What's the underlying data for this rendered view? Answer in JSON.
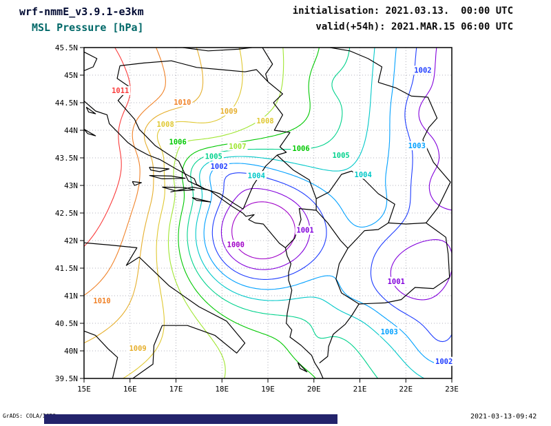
{
  "header": {
    "model_line": "wrf-nmmE_v3.9.1-e3km",
    "variable_line": "MSL Pressure [hPa]",
    "init_line": "initialisation: 2021.03.13.  00:00 UTC",
    "valid_line": "valid(+54h): 2021.MAR.15 06:00 UTC",
    "model_color": "#000a32",
    "variable_color": "#006868",
    "time_color": "#0a0a0a"
  },
  "footer": {
    "credit": "GrADS: COLA/IGES",
    "timestamp": "2021-03-13-09:42",
    "bar_color": "#23236b"
  },
  "chart_data": {
    "type": "contour-map",
    "title": "MSL Pressure [hPa]",
    "units": "hPa",
    "region": "Adriatic / Balkans",
    "x_axis": {
      "min": 15,
      "max": 23,
      "ticks": [
        {
          "value": 15,
          "label": "15E"
        },
        {
          "value": 16,
          "label": "16E"
        },
        {
          "value": 17,
          "label": "17E"
        },
        {
          "value": 18,
          "label": "18E"
        },
        {
          "value": 19,
          "label": "19E"
        },
        {
          "value": 20,
          "label": "20E"
        },
        {
          "value": 21,
          "label": "21E"
        },
        {
          "value": 22,
          "label": "22E"
        },
        {
          "value": 23,
          "label": "23E"
        }
      ]
    },
    "y_axis": {
      "min": 39.5,
      "max": 45.5,
      "ticks": [
        {
          "value": 45.5,
          "label": "45.5N"
        },
        {
          "value": 45,
          "label": "45N"
        },
        {
          "value": 44.5,
          "label": "44.5N"
        },
        {
          "value": 44,
          "label": "44N"
        },
        {
          "value": 43.5,
          "label": "43.5N"
        },
        {
          "value": 43,
          "label": "43N"
        },
        {
          "value": 42.5,
          "label": "42.5N"
        },
        {
          "value": 42,
          "label": "42N"
        },
        {
          "value": 41.5,
          "label": "41.5N"
        },
        {
          "value": 41,
          "label": "41N"
        },
        {
          "value": 40.5,
          "label": "40.5N"
        },
        {
          "value": 40,
          "label": "40N"
        },
        {
          "value": 39.5,
          "label": "39.5N"
        }
      ]
    },
    "grid": {
      "lon_step": 1,
      "lat_step": 0.5,
      "style": "dotted"
    },
    "contour_levels": [
      {
        "value": 1000,
        "color": "#a000c8"
      },
      {
        "value": 1001,
        "color": "#8200dc"
      },
      {
        "value": 1002,
        "color": "#1e3cff"
      },
      {
        "value": 1003,
        "color": "#00a0ff"
      },
      {
        "value": 1004,
        "color": "#00c8c8"
      },
      {
        "value": 1005,
        "color": "#00d28c"
      },
      {
        "value": 1006,
        "color": "#00c800"
      },
      {
        "value": 1007,
        "color": "#a0e632"
      },
      {
        "value": 1008,
        "color": "#e0c832"
      },
      {
        "value": 1009,
        "color": "#e6af2d"
      },
      {
        "value": 1010,
        "color": "#f08228"
      },
      {
        "value": 1011,
        "color": "#fa3c3c"
      }
    ],
    "contour_labels": [
      {
        "value": 1011,
        "lon": 15.79,
        "lat": 44.72
      },
      {
        "value": 1010,
        "lon": 17.14,
        "lat": 44.51
      },
      {
        "value": 1009,
        "lon": 18.15,
        "lat": 44.35
      },
      {
        "value": 1008,
        "lon": 18.94,
        "lat": 44.17
      },
      {
        "value": 1008,
        "lon": 16.77,
        "lat": 44.11
      },
      {
        "value": 1006,
        "lon": 17.04,
        "lat": 43.79
      },
      {
        "value": 1007,
        "lon": 18.34,
        "lat": 43.71
      },
      {
        "value": 1005,
        "lon": 17.82,
        "lat": 43.53
      },
      {
        "value": 1002,
        "lon": 17.94,
        "lat": 43.35
      },
      {
        "value": 1004,
        "lon": 18.75,
        "lat": 43.18
      },
      {
        "value": 1006,
        "lon": 19.72,
        "lat": 43.67
      },
      {
        "value": 1005,
        "lon": 20.59,
        "lat": 43.55
      },
      {
        "value": 1004,
        "lon": 21.07,
        "lat": 43.2
      },
      {
        "value": 1003,
        "lon": 22.24,
        "lat": 43.72
      },
      {
        "value": 1002,
        "lon": 22.37,
        "lat": 45.09
      },
      {
        "value": 1001,
        "lon": 19.81,
        "lat": 42.19
      },
      {
        "value": 1000,
        "lon": 18.3,
        "lat": 41.93
      },
      {
        "value": 1001,
        "lon": 21.79,
        "lat": 41.26
      },
      {
        "value": 1003,
        "lon": 21.64,
        "lat": 40.35
      },
      {
        "value": 1002,
        "lon": 22.83,
        "lat": 39.81
      },
      {
        "value": 1010,
        "lon": 15.39,
        "lat": 40.91
      },
      {
        "value": 1009,
        "lon": 16.17,
        "lat": 40.05
      }
    ],
    "pressure_field": {
      "base": 1006.3,
      "gaussians": [
        {
          "lon": 13.2,
          "lat": 44.0,
          "slon": 4.7,
          "slat": 4.3,
          "amp": 7.0
        },
        {
          "lon": 18.7,
          "lat": 42.2,
          "slon": 1.65,
          "slat": 1.25,
          "amp": -8.8
        },
        {
          "lon": 25.0,
          "lat": 45.9,
          "slon": 3.2,
          "slat": 3.2,
          "amp": -8.0
        },
        {
          "lon": 22.9,
          "lat": 41.8,
          "slon": 2.4,
          "slat": 3.0,
          "amp": -3.6
        },
        {
          "lon": 22.0,
          "lat": 41.3,
          "slon": 1.1,
          "slat": 0.8,
          "amp": -2.4
        },
        {
          "lon": 22.8,
          "lat": 40.1,
          "slon": 0.7,
          "slat": 0.6,
          "amp": -1.3
        },
        {
          "lon": 16.75,
          "lat": 43.95,
          "slon": 0.8,
          "slat": 0.45,
          "amp": -2.2
        },
        {
          "lon": 17.8,
          "lat": 43.3,
          "slon": 1.0,
          "slat": 0.42,
          "amp": -2.7
        },
        {
          "lon": 20.7,
          "lat": 41.0,
          "slon": 0.5,
          "slat": 0.4,
          "amp": -0.7
        },
        {
          "lon": 22.4,
          "lat": 44.3,
          "slon": 0.5,
          "slat": 0.4,
          "amp": -0.8
        },
        {
          "lon": 20.3,
          "lat": 44.85,
          "slon": 0.5,
          "slat": 0.4,
          "amp": -0.6
        },
        {
          "lon": 20.0,
          "lat": 40.15,
          "slon": 0.5,
          "slat": 0.4,
          "amp": -0.6
        },
        {
          "lon": 21.2,
          "lat": 42.6,
          "slon": 0.45,
          "slat": 0.35,
          "amp": 0.6
        },
        {
          "lon": 22.7,
          "lat": 42.95,
          "slon": 0.4,
          "slat": 0.35,
          "amp": -0.6
        }
      ]
    },
    "borders": [
      [
        [
          15.0,
          44.53
        ],
        [
          15.25,
          44.35
        ],
        [
          15.5,
          44.28
        ],
        [
          15.55,
          44.12
        ],
        [
          15.95,
          43.78
        ],
        [
          16.15,
          43.66
        ],
        [
          16.4,
          43.55
        ],
        [
          16.65,
          43.47
        ],
        [
          17.0,
          43.3
        ],
        [
          17.4,
          43.12
        ],
        [
          17.45,
          43.02
        ],
        [
          17.62,
          42.94
        ],
        [
          17.75,
          42.9
        ],
        [
          18.05,
          42.72
        ],
        [
          18.22,
          42.62
        ],
        [
          18.45,
          42.5
        ],
        [
          18.52,
          42.44
        ],
        [
          18.7,
          42.47
        ],
        [
          18.58,
          42.38
        ],
        [
          18.72,
          42.32
        ],
        [
          18.9,
          42.3
        ],
        [
          19.05,
          42.15
        ],
        [
          19.15,
          42.05
        ],
        [
          19.25,
          41.95
        ],
        [
          19.38,
          41.87
        ],
        [
          19.42,
          41.72
        ],
        [
          19.5,
          41.58
        ],
        [
          19.45,
          41.42
        ],
        [
          19.45,
          41.28
        ],
        [
          19.52,
          41.1
        ],
        [
          19.47,
          40.9
        ],
        [
          19.42,
          40.68
        ],
        [
          19.4,
          40.5
        ],
        [
          19.52,
          40.38
        ],
        [
          19.48,
          40.25
        ],
        [
          19.72,
          40.1
        ],
        [
          19.95,
          39.92
        ],
        [
          20.02,
          39.78
        ],
        [
          20.12,
          39.65
        ],
        [
          20.2,
          39.5
        ]
      ],
      [
        [
          15.05,
          44.42
        ],
        [
          15.25,
          44.3
        ],
        [
          15.1,
          44.33
        ],
        [
          15.05,
          44.42
        ]
      ],
      [
        [
          15.0,
          44.02
        ],
        [
          15.25,
          43.9
        ],
        [
          15.08,
          43.94
        ],
        [
          15.0,
          44.02
        ]
      ],
      [
        [
          16.42,
          43.33
        ],
        [
          16.85,
          43.3
        ],
        [
          16.65,
          43.25
        ],
        [
          16.45,
          43.28
        ],
        [
          16.42,
          43.33
        ]
      ],
      [
        [
          16.42,
          43.18
        ],
        [
          16.9,
          43.17
        ],
        [
          17.2,
          43.13
        ],
        [
          16.7,
          43.12
        ],
        [
          16.42,
          43.18
        ]
      ],
      [
        [
          16.05,
          43.07
        ],
        [
          16.25,
          43.05
        ],
        [
          16.1,
          43.0
        ],
        [
          16.05,
          43.07
        ]
      ],
      [
        [
          16.7,
          42.97
        ],
        [
          17.2,
          42.96
        ],
        [
          17.4,
          42.92
        ],
        [
          17.0,
          42.9
        ],
        [
          16.7,
          42.97
        ]
      ],
      [
        [
          16.88,
          42.88
        ],
        [
          17.35,
          42.97
        ],
        [
          17.68,
          42.92
        ]
      ],
      [
        [
          17.35,
          42.78
        ],
        [
          17.75,
          42.7
        ],
        [
          17.45,
          42.73
        ],
        [
          17.35,
          42.78
        ]
      ],
      [
        [
          15.0,
          45.42
        ],
        [
          15.28,
          45.3
        ],
        [
          15.2,
          45.15
        ],
        [
          15.0,
          45.08
        ]
      ],
      [
        [
          17.15,
          45.5
        ],
        [
          17.7,
          45.44
        ],
        [
          18.35,
          45.47
        ],
        [
          18.65,
          45.5
        ]
      ],
      [
        [
          15.78,
          45.17
        ],
        [
          16.3,
          45.22
        ],
        [
          16.9,
          45.26
        ],
        [
          17.45,
          45.14
        ],
        [
          17.98,
          45.1
        ],
        [
          18.5,
          45.06
        ],
        [
          18.75,
          45.1
        ],
        [
          19.0,
          44.88
        ]
      ],
      [
        [
          15.78,
          45.17
        ],
        [
          15.72,
          44.94
        ],
        [
          16.0,
          44.78
        ],
        [
          15.74,
          44.54
        ],
        [
          16.1,
          44.2
        ],
        [
          16.2,
          44.02
        ],
        [
          16.55,
          43.72
        ],
        [
          17.06,
          43.44
        ],
        [
          17.27,
          43.08
        ],
        [
          17.62,
          42.94
        ]
      ],
      [
        [
          17.62,
          42.94
        ],
        [
          17.95,
          42.85
        ],
        [
          18.25,
          42.68
        ],
        [
          18.46,
          42.57
        ]
      ],
      [
        [
          18.46,
          42.57
        ],
        [
          18.55,
          42.75
        ],
        [
          18.68,
          43.0
        ],
        [
          18.95,
          43.35
        ],
        [
          19.2,
          43.55
        ]
      ],
      [
        [
          19.0,
          44.88
        ],
        [
          19.32,
          44.66
        ],
        [
          19.12,
          44.5
        ],
        [
          19.32,
          44.28
        ],
        [
          19.14,
          44.0
        ],
        [
          19.48,
          43.96
        ],
        [
          19.26,
          43.7
        ],
        [
          19.4,
          43.6
        ],
        [
          19.2,
          43.55
        ]
      ],
      [
        [
          18.88,
          45.5
        ],
        [
          19.1,
          45.2
        ],
        [
          18.95,
          45.02
        ],
        [
          19.0,
          44.88
        ]
      ],
      [
        [
          20.35,
          45.5
        ],
        [
          20.78,
          45.44
        ],
        [
          21.18,
          45.3
        ],
        [
          21.48,
          45.15
        ],
        [
          21.4,
          44.87
        ]
      ],
      [
        [
          21.4,
          44.87
        ],
        [
          21.78,
          44.77
        ],
        [
          22.12,
          44.62
        ],
        [
          22.48,
          44.6
        ],
        [
          22.68,
          44.22
        ],
        [
          22.5,
          44.05
        ],
        [
          22.37,
          43.83
        ]
      ],
      [
        [
          22.37,
          43.83
        ],
        [
          22.6,
          43.42
        ],
        [
          22.97,
          43.06
        ],
        [
          22.7,
          42.6
        ],
        [
          22.44,
          42.32
        ]
      ],
      [
        [
          22.44,
          42.32
        ],
        [
          22.87,
          42.06
        ],
        [
          22.92,
          41.76
        ],
        [
          22.95,
          41.33
        ]
      ],
      [
        [
          22.95,
          41.33
        ],
        [
          22.6,
          41.13
        ],
        [
          22.2,
          41.15
        ],
        [
          21.9,
          40.93
        ],
        [
          21.55,
          40.87
        ],
        [
          21.25,
          40.86
        ],
        [
          20.98,
          40.85
        ],
        [
          20.83,
          40.65
        ],
        [
          20.68,
          40.48
        ],
        [
          20.42,
          40.3
        ],
        [
          20.32,
          40.08
        ],
        [
          20.3,
          39.9
        ],
        [
          20.12,
          39.78
        ]
      ],
      [
        [
          20.05,
          42.76
        ],
        [
          20.33,
          42.88
        ],
        [
          20.6,
          43.2
        ],
        [
          20.82,
          43.26
        ],
        [
          21.1,
          43.1
        ],
        [
          21.4,
          42.85
        ],
        [
          21.76,
          42.66
        ],
        [
          21.62,
          42.32
        ],
        [
          21.4,
          42.2
        ],
        [
          21.1,
          42.18
        ],
        [
          20.74,
          41.86
        ],
        [
          20.58,
          42.0
        ],
        [
          20.3,
          42.32
        ],
        [
          20.05,
          42.55
        ],
        [
          20.05,
          42.76
        ]
      ],
      [
        [
          19.2,
          43.55
        ],
        [
          19.55,
          43.28
        ],
        [
          19.9,
          43.1
        ],
        [
          20.05,
          42.76
        ]
      ],
      [
        [
          19.38,
          41.87
        ],
        [
          19.58,
          42.04
        ],
        [
          19.72,
          42.38
        ],
        [
          19.68,
          42.58
        ],
        [
          20.05,
          42.55
        ]
      ],
      [
        [
          21.62,
          42.32
        ],
        [
          22.0,
          42.3
        ],
        [
          22.44,
          42.32
        ]
      ],
      [
        [
          20.74,
          41.86
        ],
        [
          20.55,
          41.58
        ],
        [
          20.48,
          41.3
        ],
        [
          20.6,
          41.05
        ],
        [
          20.98,
          40.85
        ]
      ],
      [
        [
          15.62,
          39.5
        ],
        [
          15.73,
          39.88
        ],
        [
          15.52,
          40.04
        ],
        [
          15.25,
          40.28
        ],
        [
          15.0,
          40.36
        ]
      ],
      [
        [
          16.06,
          39.5
        ],
        [
          16.5,
          39.76
        ],
        [
          16.52,
          40.1
        ],
        [
          16.7,
          40.46
        ],
        [
          17.25,
          40.46
        ],
        [
          17.85,
          40.28
        ],
        [
          18.32,
          39.96
        ],
        [
          18.5,
          40.14
        ],
        [
          18.1,
          40.54
        ],
        [
          17.5,
          40.8
        ],
        [
          16.85,
          41.18
        ],
        [
          16.2,
          41.7
        ],
        [
          15.92,
          41.55
        ],
        [
          16.15,
          41.87
        ],
        [
          15.55,
          41.92
        ],
        [
          15.0,
          41.96
        ]
      ],
      [
        [
          19.65,
          39.79
        ],
        [
          19.85,
          39.62
        ],
        [
          19.7,
          39.68
        ],
        [
          19.65,
          39.79
        ]
      ]
    ]
  }
}
